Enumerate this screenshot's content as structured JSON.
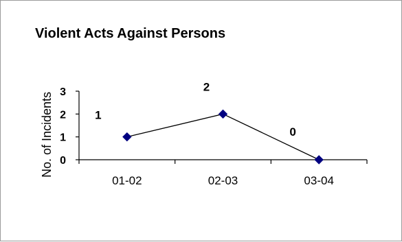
{
  "chart_data": {
    "type": "line",
    "title": "Violent Acts Against Persons",
    "xlabel": "",
    "ylabel": "No. of Incidents",
    "categories": [
      "01-02",
      "02-03",
      "03-04"
    ],
    "series": [
      {
        "values": [
          1,
          2,
          0
        ],
        "color": "#000080",
        "marker": "diamond"
      }
    ],
    "data_labels": [
      "1",
      "2",
      "0"
    ],
    "yticks": [
      "0",
      "1",
      "2",
      "3"
    ],
    "ylim": [
      0,
      3
    ],
    "grid": false,
    "legend": "none"
  }
}
